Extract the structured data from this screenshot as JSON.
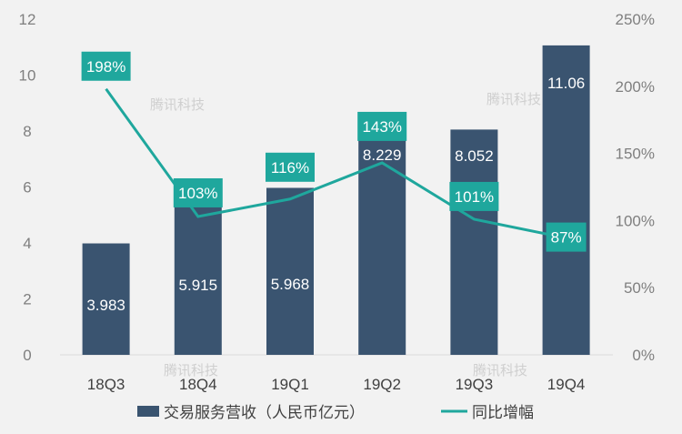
{
  "chart_data": {
    "type": "bar",
    "categories": [
      "18Q3",
      "18Q4",
      "19Q1",
      "19Q2",
      "19Q3",
      "19Q4"
    ],
    "series": [
      {
        "name": "交易服务营收（人民币亿元）",
        "type": "bar",
        "axis": "left",
        "values": [
          3.983,
          5.915,
          5.968,
          8.229,
          8.052,
          11.06
        ],
        "labels": [
          "3.983",
          "5.915",
          "5.968",
          "8.229",
          "8.052",
          "11.06"
        ],
        "color": "#3a5470"
      },
      {
        "name": "同比增幅",
        "type": "line",
        "axis": "right",
        "values": [
          198,
          103,
          116,
          143,
          101,
          87
        ],
        "labels": [
          "198%",
          "103%",
          "116%",
          "143%",
          "101%",
          "87%"
        ],
        "color": "#1fa79d"
      }
    ],
    "ylim_left": [
      0,
      12
    ],
    "yticks_left": [
      "0",
      "2",
      "4",
      "6",
      "8",
      "10",
      "12"
    ],
    "ylim_right": [
      0,
      250
    ],
    "yticks_right": [
      "0%",
      "50%",
      "100%",
      "150%",
      "200%",
      "250%"
    ],
    "grid": false,
    "legend_position": "bottom",
    "watermark": "腾讯科技"
  }
}
